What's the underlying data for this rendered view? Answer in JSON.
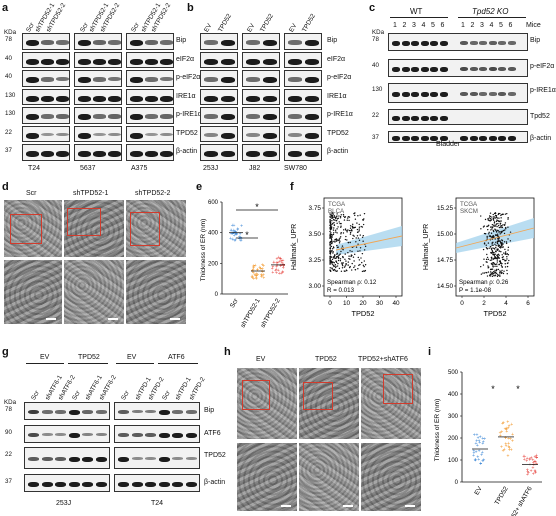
{
  "panels": {
    "a": "a",
    "b": "b",
    "c": "c",
    "d": "d",
    "e": "e",
    "f": "f",
    "g": "g",
    "h": "h",
    "i": "i"
  },
  "kda": "KDa",
  "a": {
    "lanes": [
      "Scr",
      "shTPD52-1",
      "shTPD52-2",
      "Scr",
      "shTPD52-1",
      "shTPD52-2",
      "Scr",
      "shTPD52-1",
      "shTPD52-2"
    ],
    "mw": [
      "78",
      "40",
      "40",
      "130",
      "130",
      "22",
      "37"
    ],
    "rows": [
      "Bip",
      "eIF2α",
      "p-eIF2α",
      "IRE1α",
      "p-IRE1α",
      "TPD52",
      "β-actin"
    ],
    "cells": [
      "T24",
      "5637",
      "A375"
    ]
  },
  "b": {
    "lanes": [
      "EV",
      "TPD52",
      "EV",
      "TPD52",
      "EV",
      "TPD52"
    ],
    "rows": [
      "Bip",
      "eIF2α",
      "p-eIF2α",
      "IRE1α",
      "p-IRE1α",
      "TPD52",
      "β-actin"
    ],
    "cells": [
      "253J",
      "J82",
      "SW780"
    ]
  },
  "c": {
    "groups": [
      "WT",
      "Tpd52 KO"
    ],
    "mice_label": "Mice",
    "mice": [
      "1",
      "2",
      "3",
      "4",
      "5",
      "6",
      "1",
      "2",
      "3",
      "4",
      "5",
      "6"
    ],
    "mw": [
      "78",
      "40",
      "130",
      "22",
      "37"
    ],
    "rows": [
      "Bip",
      "p-eIF2α",
      "p-IRE1α",
      "Tpd52",
      "β-actin"
    ],
    "tissue": "Bladder"
  },
  "d": {
    "labels": [
      "Scr",
      "shTPD52-1",
      "shTPD52-2"
    ]
  },
  "e": {
    "ylabel": "Thickness of ER (nm)",
    "yticks": [
      "0",
      "200",
      "400",
      "600"
    ],
    "groups": [
      "Scr",
      "shTPD52-1",
      "shTPD52-2"
    ],
    "star1": "*",
    "star2": "*"
  },
  "f": {
    "left": {
      "title1": "TCGA",
      "title2": "BLCA",
      "ylabel": "Hallmark_UPR",
      "xlabel": "TPD52",
      "yticks": [
        "3.00",
        "3.25",
        "3.50",
        "3.75"
      ],
      "xticks": [
        "0",
        "10",
        "20",
        "30",
        "40"
      ],
      "stat1": "Spearman ρ: 0.12",
      "stat2": "R = 0.013"
    },
    "right": {
      "title1": "TCGA",
      "title2": "SKCM",
      "ylabel": "Hallmark_UPR",
      "xlabel": "TPD52",
      "yticks": [
        "14.50",
        "14.75",
        "15.00",
        "15.25"
      ],
      "xticks": [
        "0",
        "2",
        "4",
        "6"
      ],
      "stat1": "Spearman ρ: 0.26",
      "stat2": "P = 1.1e-08"
    }
  },
  "g": {
    "group_left": [
      "EV",
      "TPD52"
    ],
    "group_right": [
      "EV",
      "ATF6"
    ],
    "lanes_left": [
      "Scr",
      "shATF6-1",
      "shATF6-2",
      "Scr",
      "shATF6-1",
      "shATF6-2"
    ],
    "lanes_right": [
      "Scr",
      "shTPD-1",
      "shTPD-2",
      "Scr",
      "shTPD-1",
      "shTPD-2"
    ],
    "mw": [
      "78",
      "90",
      "22",
      "37"
    ],
    "rows": [
      "Bip",
      "ATF6",
      "TPD52",
      "β-actin"
    ],
    "cells": [
      "253J",
      "T24"
    ]
  },
  "h": {
    "labels": [
      "EV",
      "TPD52",
      "TPD52+shATF6"
    ]
  },
  "i": {
    "ylabel": "Thickness of ER (nm)",
    "yticks": [
      "0",
      "100",
      "200",
      "300",
      "400",
      "500"
    ],
    "groups": [
      "EV",
      "TPD52",
      "TPD52+ shATF6"
    ],
    "star1": "*",
    "star2": "*"
  },
  "colors": {
    "blue": "#4a90d9",
    "orange": "#f39c34",
    "red": "#e8534e",
    "emred": "#d23b2c",
    "band": "#1c1c1c",
    "ci": "#a8d4ee"
  }
}
